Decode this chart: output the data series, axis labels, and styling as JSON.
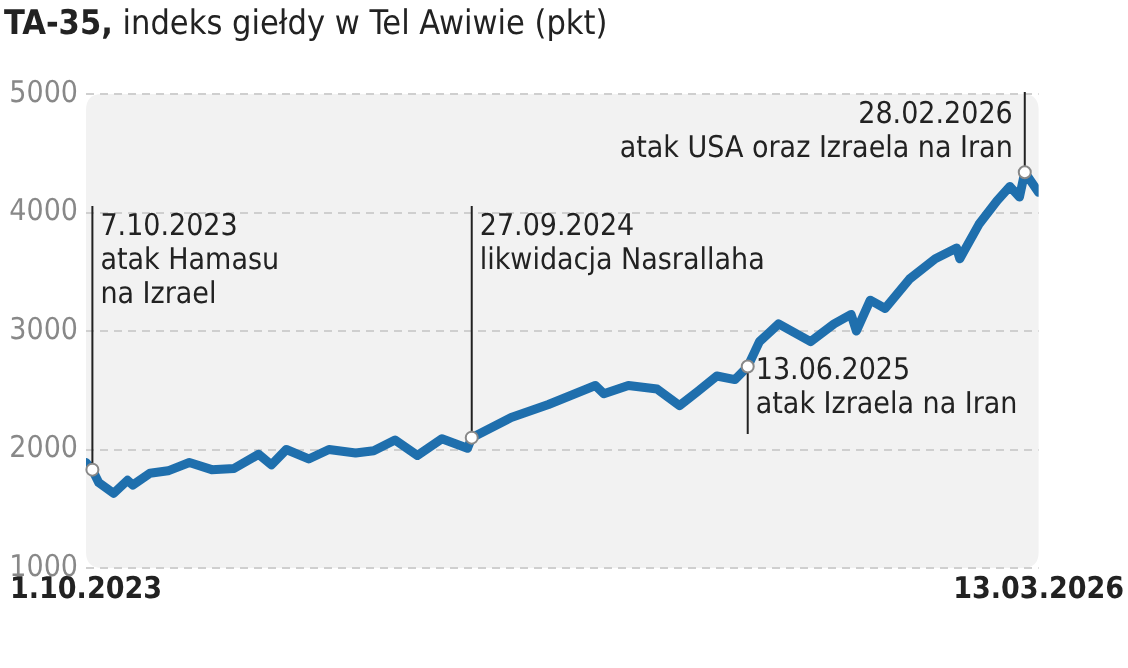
{
  "chart_data": {
    "type": "line",
    "title": "TA-35, indeks giełdy w Tel Awiwie (pkt)",
    "x": [
      "2023-10-01",
      "2023-10-07",
      "2023-10-13",
      "2023-10-27",
      "2023-11-09",
      "2023-11-14",
      "2023-11-30",
      "2023-12-17",
      "2024-01-06",
      "2024-01-27",
      "2024-02-17",
      "2024-03-11",
      "2024-03-23",
      "2024-04-06",
      "2024-04-27",
      "2024-05-16",
      "2024-06-10",
      "2024-06-27",
      "2024-07-17",
      "2024-08-07",
      "2024-08-30",
      "2024-09-23",
      "2024-09-27",
      "2024-11-03",
      "2024-12-08",
      "2025-01-21",
      "2025-01-29",
      "2025-02-21",
      "2025-03-20",
      "2025-04-10",
      "2025-04-27",
      "2025-05-15",
      "2025-06-01",
      "2025-06-13",
      "2025-06-24",
      "2025-07-12",
      "2025-08-11",
      "2025-09-02",
      "2025-09-18",
      "2025-09-23",
      "2025-10-06",
      "2025-10-20",
      "2025-11-12",
      "2025-12-06",
      "2025-12-26",
      "2025-12-29",
      "2026-01-16",
      "2026-02-02",
      "2026-02-14",
      "2026-02-23",
      "2026-02-28",
      "2026-03-13"
    ],
    "series": [
      {
        "color": "#1f6fad",
        "values": [
          1890,
          1830,
          1720,
          1630,
          1740,
          1700,
          1800,
          1820,
          1890,
          1830,
          1840,
          1960,
          1870,
          2000,
          1920,
          2000,
          1970,
          1990,
          2080,
          1950,
          2090,
          2010,
          2100,
          2270,
          2380,
          2540,
          2470,
          2540,
          2510,
          2370,
          2490,
          2620,
          2590,
          2700,
          2910,
          3060,
          2910,
          3060,
          3140,
          3000,
          3260,
          3190,
          3440,
          3610,
          3700,
          3610,
          3900,
          4100,
          4220,
          4130,
          4340,
          4170
        ]
      }
    ],
    "xlim": [
      "2023-10-01",
      "2026-03-13"
    ],
    "xticks": [
      {
        "value": "2023-10-01",
        "label": "1.10.2023"
      },
      {
        "value": "2026-03-13",
        "label": "13.03.2026"
      }
    ],
    "ylim": [
      1000,
      5000
    ],
    "yticks": [
      1000,
      2000,
      3000,
      4000,
      5000
    ],
    "grid": "y",
    "legend": false,
    "line_style": "solid",
    "annotations": [
      {
        "text": "7.10.2023\natak Hamasu\nna Izrael",
        "x": "2023-10-07",
        "y": 1830
      },
      {
        "text": "27.09.2024\nlikwidacja Nasrallaha",
        "x": "2024-09-27",
        "y": 2100
      },
      {
        "text": "13.06.2025\natak Izraela na Iran",
        "x": "2025-06-13",
        "y": 2700
      },
      {
        "text": "28.02.2026\natak USA oraz Izraela na Iran",
        "x": "2026-02-28",
        "y": 4340
      }
    ]
  }
}
